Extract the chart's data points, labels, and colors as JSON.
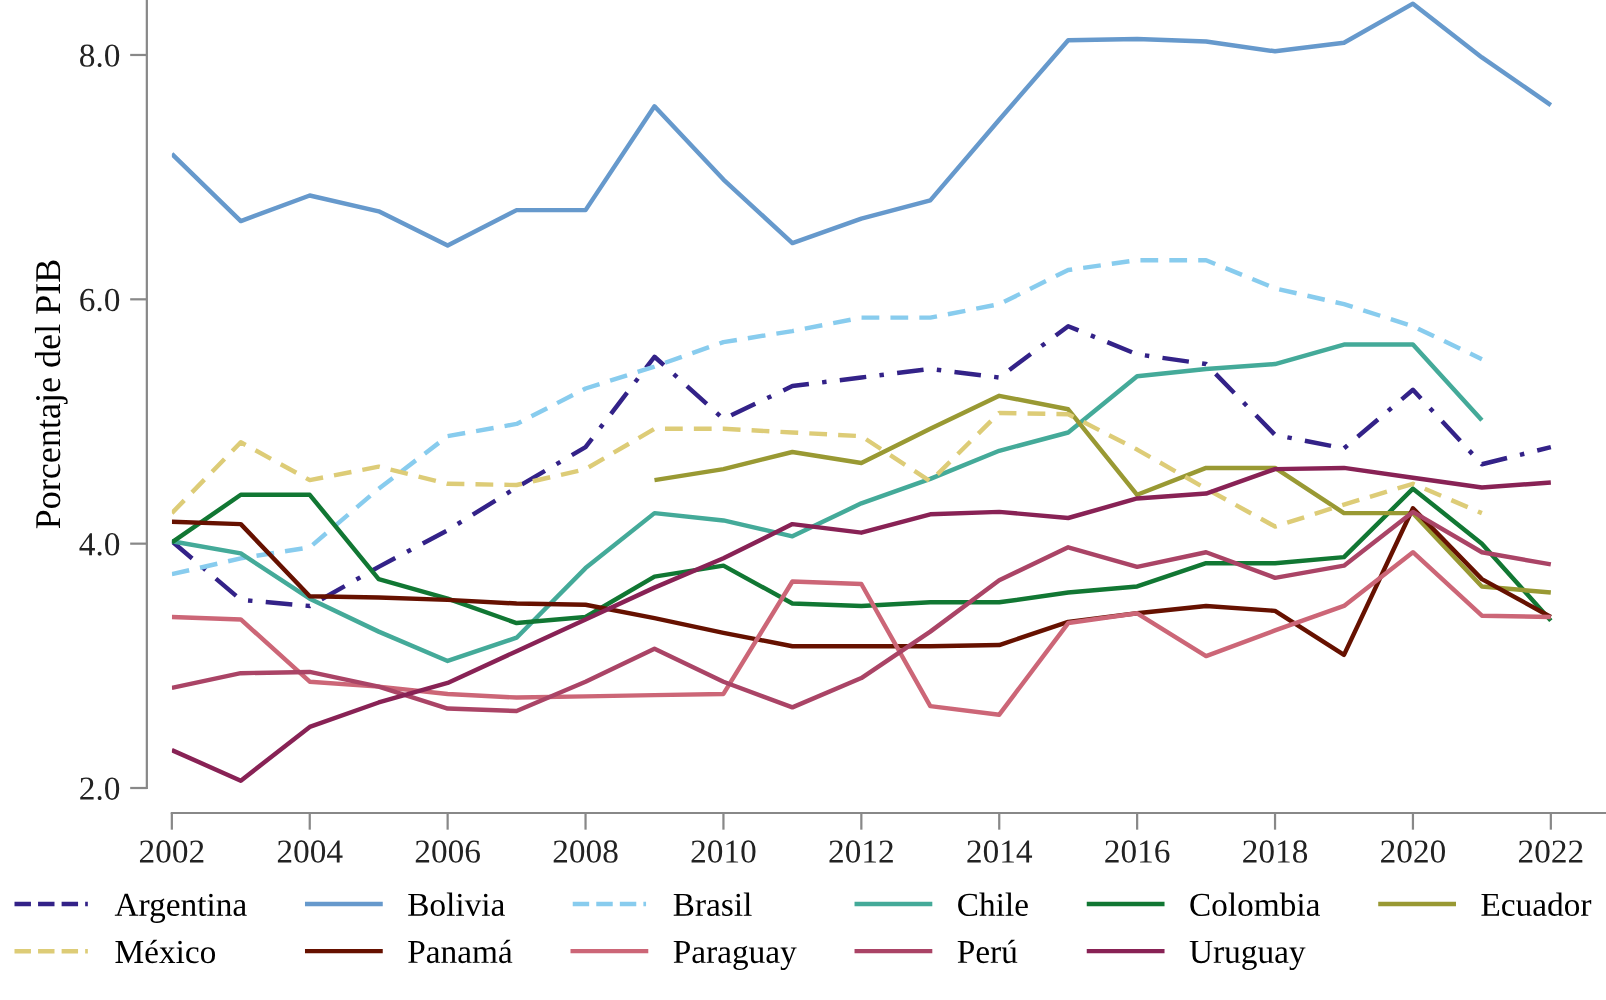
{
  "chart_data": {
    "type": "line",
    "ylabel": "Porcentaje del PIB",
    "x": [
      2002,
      2003,
      2004,
      2005,
      2006,
      2007,
      2008,
      2009,
      2010,
      2011,
      2012,
      2013,
      2014,
      2015,
      2016,
      2017,
      2018,
      2019,
      2020,
      2021,
      2022
    ],
    "series": [
      {
        "name": "Argentina",
        "color": "#332288",
        "line_style": "dashdot",
        "values": [
          4.02,
          3.54,
          3.49,
          3.81,
          4.11,
          4.46,
          4.79,
          5.53,
          5.02,
          5.29,
          5.36,
          5.43,
          5.36,
          5.78,
          5.55,
          5.47,
          4.89,
          4.78,
          5.26,
          4.65,
          4.79
        ]
      },
      {
        "name": "Bolivia",
        "color": "#6699cc",
        "line_style": "solid",
        "values": [
          7.19,
          6.64,
          6.85,
          6.72,
          6.44,
          6.73,
          6.73,
          7.58,
          6.98,
          6.46,
          6.66,
          6.81,
          7.47,
          8.12,
          8.13,
          8.11,
          8.03,
          8.1,
          8.42,
          7.98,
          7.59
        ]
      },
      {
        "name": "Brasil",
        "color": "#88ccee",
        "line_style": "dashed",
        "values": [
          3.75,
          3.88,
          3.97,
          4.45,
          4.88,
          4.98,
          5.27,
          5.45,
          5.65,
          5.74,
          5.85,
          5.85,
          5.96,
          6.24,
          6.32,
          6.32,
          6.09,
          5.96,
          5.78,
          5.51,
          null
        ]
      },
      {
        "name": "Chile",
        "color": "#44aa99",
        "line_style": "solid",
        "values": [
          4.02,
          3.92,
          3.55,
          3.28,
          3.04,
          3.23,
          3.8,
          4.25,
          4.19,
          4.06,
          4.33,
          4.53,
          4.76,
          4.91,
          5.37,
          5.43,
          5.47,
          5.63,
          5.63,
          5.01,
          null
        ]
      },
      {
        "name": "Colombia",
        "color": "#117733",
        "line_style": "solid",
        "values": [
          4.01,
          4.4,
          4.4,
          3.71,
          3.55,
          3.35,
          3.4,
          3.73,
          3.82,
          3.51,
          3.49,
          3.52,
          3.52,
          3.6,
          3.65,
          3.84,
          3.84,
          3.89,
          4.45,
          4.0,
          3.37
        ]
      },
      {
        "name": "Ecuador",
        "color": "#999933",
        "line_style": "solid",
        "values": [
          null,
          null,
          null,
          null,
          null,
          null,
          null,
          4.52,
          4.61,
          4.75,
          4.66,
          4.94,
          5.21,
          5.1,
          4.4,
          4.62,
          4.62,
          4.25,
          4.25,
          3.65,
          3.6
        ]
      },
      {
        "name": "México",
        "color": "#ddcc77",
        "line_style": "dashed",
        "values": [
          4.25,
          4.83,
          4.52,
          4.63,
          4.49,
          4.48,
          4.61,
          4.94,
          4.94,
          4.91,
          4.88,
          4.51,
          5.07,
          5.06,
          4.77,
          4.45,
          4.14,
          4.32,
          4.49,
          4.25,
          null
        ]
      },
      {
        "name": "Panamá",
        "color": "#661100",
        "line_style": "solid",
        "values": [
          4.18,
          4.16,
          3.57,
          3.56,
          3.54,
          3.51,
          3.5,
          3.39,
          3.27,
          3.16,
          3.16,
          3.16,
          3.17,
          3.36,
          3.43,
          3.49,
          3.45,
          3.09,
          4.29,
          3.71,
          3.4
        ]
      },
      {
        "name": "Paraguay",
        "color": "#cc6677",
        "line_style": "solid",
        "values": [
          3.4,
          3.38,
          2.87,
          2.83,
          2.77,
          2.74,
          2.75,
          2.76,
          2.77,
          3.69,
          3.67,
          2.67,
          2.6,
          3.35,
          3.43,
          3.08,
          3.29,
          3.49,
          3.93,
          3.41,
          3.4
        ]
      },
      {
        "name": "Perú",
        "color": "#aa4466",
        "line_style": "solid",
        "values": [
          2.82,
          2.94,
          2.95,
          2.83,
          2.65,
          2.63,
          2.87,
          3.14,
          2.87,
          2.66,
          2.9,
          3.28,
          3.7,
          3.97,
          3.81,
          3.93,
          3.72,
          3.82,
          4.26,
          3.93,
          3.83
        ]
      },
      {
        "name": "Uruguay",
        "color": "#882255",
        "line_style": "solid",
        "values": [
          2.31,
          2.06,
          2.5,
          2.7,
          2.86,
          3.12,
          3.38,
          3.64,
          3.88,
          4.16,
          4.09,
          4.24,
          4.26,
          4.21,
          4.37,
          4.41,
          4.61,
          4.62,
          4.54,
          4.46,
          4.5
        ]
      }
    ],
    "xlim": [
      2002,
      2022.8
    ],
    "ylim": [
      2.0,
      8.45
    ],
    "xticks": [
      2002,
      2004,
      2006,
      2008,
      2010,
      2012,
      2014,
      2016,
      2018,
      2020,
      2022
    ],
    "yticks": [
      {
        "value": 2,
        "label": "2.0"
      },
      {
        "value": 4,
        "label": "4.0"
      },
      {
        "value": 6,
        "label": "6.0"
      },
      {
        "value": 8,
        "label": "8.0"
      }
    ],
    "grid": false,
    "legend": "bottom",
    "marker": "none"
  }
}
